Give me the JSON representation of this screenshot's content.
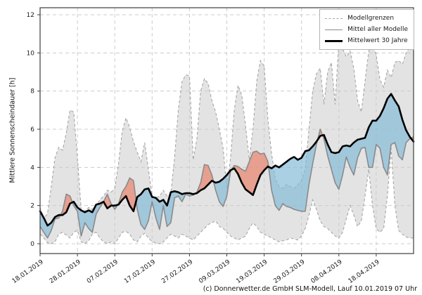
{
  "page": {
    "background": "#ffffff"
  },
  "y_axis": {
    "label": "Mittlere Sonnenscheindauer [h]",
    "ticks": [
      0,
      2,
      4,
      6,
      8,
      10,
      12
    ],
    "range": [
      -0.52,
      12.37
    ]
  },
  "x_axis": {
    "tick_labels": [
      "18.01.2019",
      "28.01.2019",
      "07.02.2019",
      "17.02.2019",
      "27.02.2019",
      "09.03.2019",
      "19.03.2019",
      "29.03.2019",
      "08.04.2019",
      "18.04.2019"
    ],
    "tick_days": [
      0,
      10,
      20,
      30,
      40,
      50,
      60,
      70,
      80,
      90
    ]
  },
  "legend": {
    "items": [
      {
        "label": "Modellgrenzen",
        "style": "dashed-gray"
      },
      {
        "label": "Mittel aller Modelle",
        "style": "solid-gray"
      },
      {
        "label": "Mittelwert 30 Jahre",
        "style": "solid-black-thick"
      }
    ]
  },
  "footer": {
    "credit": "(c) Donnerwetter.de GmbH SLM-Modell, Lauf 10.01.2019 07 Uhr"
  },
  "colors": {
    "band": "#e3e3e3",
    "band_border": "#a6a6a6",
    "grid": "#cccccc",
    "model_mean_line": "#8a8a8a",
    "mean30_line": "#000000",
    "fill_model_below_mean30": "rgba(130,185,215,0.68)",
    "fill_model_above_mean30": "rgba(232,140,120,0.78)",
    "frame": "#3c3c3c",
    "text": "#1a1a1a"
  },
  "chart_data": {
    "type": "line",
    "title": "",
    "xlabel": "",
    "ylabel": "Mittlere Sonnenscheindauer [h]",
    "x_start_date": "18.01.2019",
    "x_end_date": "28.04.2019",
    "x_unit": "day index from 18.01.2019 (1 point per day)",
    "n": 101,
    "ylim": [
      -0.52,
      12.37
    ],
    "grid": true,
    "legend_position": "upper right",
    "series": [
      {
        "name": "Modellgrenzen (obere Grenze)",
        "values": [
          1.9,
          1.3,
          1.6,
          3.0,
          4.5,
          5.05,
          4.9,
          5.8,
          7.0,
          6.9,
          4.5,
          1.8,
          1.7,
          1.9,
          1.8,
          2.0,
          2.3,
          2.5,
          2.8,
          2.7,
          2.9,
          4.2,
          5.9,
          6.6,
          6.1,
          5.35,
          4.8,
          4.3,
          5.3,
          3.9,
          2.5,
          2.4,
          2.5,
          2.8,
          2.5,
          2.6,
          4.5,
          7.0,
          8.5,
          8.85,
          8.8,
          4.4,
          5.5,
          8.0,
          8.65,
          8.4,
          7.5,
          6.9,
          6.0,
          5.0,
          2.9,
          4.5,
          7.0,
          8.3,
          7.8,
          6.2,
          4.4,
          6.0,
          8.5,
          9.6,
          9.3,
          6.5,
          4.7,
          3.4,
          3.0,
          2.9,
          3.1,
          3.0,
          2.9,
          3.1,
          3.3,
          3.9,
          6.0,
          8.0,
          8.9,
          9.2,
          7.3,
          9.0,
          9.5,
          7.3,
          10.6,
          10.2,
          9.8,
          10.1,
          9.2,
          7.5,
          6.9,
          8.5,
          10.1,
          10.4,
          9.9,
          8.6,
          8.2,
          9.1,
          8.7,
          9.5,
          9.6,
          9.4,
          10.0,
          10.3,
          10.5
        ]
      },
      {
        "name": "Modellgrenzen (untere Grenze)",
        "values": [
          0.5,
          0.3,
          0.05,
          0.0,
          0.1,
          0.5,
          0.6,
          0.45,
          0.3,
          0.6,
          0.7,
          0.1,
          0.0,
          0.15,
          0.5,
          0.6,
          0.3,
          0.1,
          0.0,
          0.1,
          0.0,
          0.3,
          0.6,
          0.65,
          0.5,
          0.2,
          0.1,
          0.4,
          0.55,
          0.3,
          0.1,
          0.05,
          0.0,
          0.1,
          0.3,
          0.5,
          0.4,
          0.3,
          0.5,
          0.4,
          0.3,
          0.2,
          0.4,
          0.6,
          0.8,
          1.0,
          1.1,
          1.2,
          0.9,
          0.8,
          0.6,
          0.4,
          0.3,
          0.2,
          0.3,
          0.4,
          0.8,
          1.1,
          0.9,
          0.6,
          0.5,
          0.4,
          0.3,
          0.2,
          0.1,
          0.15,
          0.2,
          0.3,
          0.25,
          0.2,
          0.4,
          0.8,
          1.5,
          2.3,
          1.8,
          1.2,
          0.9,
          0.8,
          0.6,
          0.4,
          0.3,
          0.6,
          1.3,
          2.0,
          1.5,
          0.9,
          1.2,
          2.5,
          3.9,
          2.0,
          0.8,
          0.6,
          0.8,
          2.5,
          5.0,
          2.0,
          0.7,
          0.5,
          0.35,
          0.3,
          0.3
        ]
      },
      {
        "name": "Mittel aller Modelle",
        "values": [
          0.9,
          0.6,
          0.3,
          0.7,
          1.3,
          1.35,
          1.7,
          2.6,
          2.5,
          2.0,
          1.7,
          0.4,
          1.1,
          0.8,
          0.6,
          1.55,
          1.9,
          2.2,
          2.6,
          2.1,
          1.8,
          2.1,
          2.7,
          3.0,
          3.45,
          3.3,
          1.8,
          1.0,
          0.75,
          1.2,
          2.2,
          1.35,
          0.75,
          2.0,
          0.9,
          1.1,
          2.4,
          2.5,
          2.2,
          2.6,
          2.5,
          2.55,
          2.7,
          3.2,
          4.15,
          4.1,
          3.6,
          2.8,
          2.2,
          1.95,
          2.5,
          3.8,
          4.1,
          4.05,
          3.9,
          3.8,
          4.3,
          4.8,
          4.85,
          4.7,
          4.75,
          4.3,
          2.8,
          2.0,
          1.75,
          2.1,
          1.95,
          1.9,
          1.8,
          1.75,
          1.7,
          1.7,
          3.1,
          4.2,
          5.2,
          6.0,
          5.5,
          4.6,
          3.9,
          3.2,
          2.85,
          3.6,
          4.55,
          4.0,
          3.6,
          4.5,
          5.0,
          5.05,
          4.0,
          4.0,
          5.2,
          5.0,
          4.0,
          3.6,
          5.2,
          5.3,
          4.6,
          4.4,
          5.3,
          5.5,
          5.6
        ]
      },
      {
        "name": "Mittelwert 30 Jahre",
        "values": [
          1.7,
          1.35,
          0.95,
          1.1,
          1.4,
          1.5,
          1.5,
          1.65,
          2.1,
          2.2,
          1.9,
          1.75,
          1.65,
          1.75,
          1.65,
          2.05,
          2.1,
          2.2,
          1.85,
          2.0,
          2.0,
          2.05,
          2.3,
          2.5,
          2.0,
          1.7,
          2.45,
          2.6,
          2.85,
          2.9,
          2.45,
          2.4,
          2.2,
          2.3,
          2.0,
          2.7,
          2.75,
          2.7,
          2.6,
          2.65,
          2.65,
          2.6,
          2.65,
          2.8,
          2.9,
          3.1,
          3.3,
          3.2,
          3.25,
          3.4,
          3.6,
          3.85,
          3.95,
          3.65,
          3.2,
          2.85,
          2.7,
          2.55,
          3.1,
          3.6,
          3.85,
          4.05,
          3.95,
          4.1,
          4.0,
          4.15,
          4.3,
          4.45,
          4.55,
          4.4,
          4.5,
          4.85,
          4.9,
          5.1,
          5.35,
          5.65,
          5.7,
          5.2,
          4.8,
          4.75,
          4.8,
          5.1,
          5.15,
          5.1,
          5.3,
          5.45,
          5.5,
          5.55,
          6.1,
          6.45,
          6.45,
          6.7,
          7.1,
          7.6,
          7.85,
          7.5,
          7.2,
          6.5,
          5.95,
          5.6,
          5.35
        ]
      }
    ]
  }
}
